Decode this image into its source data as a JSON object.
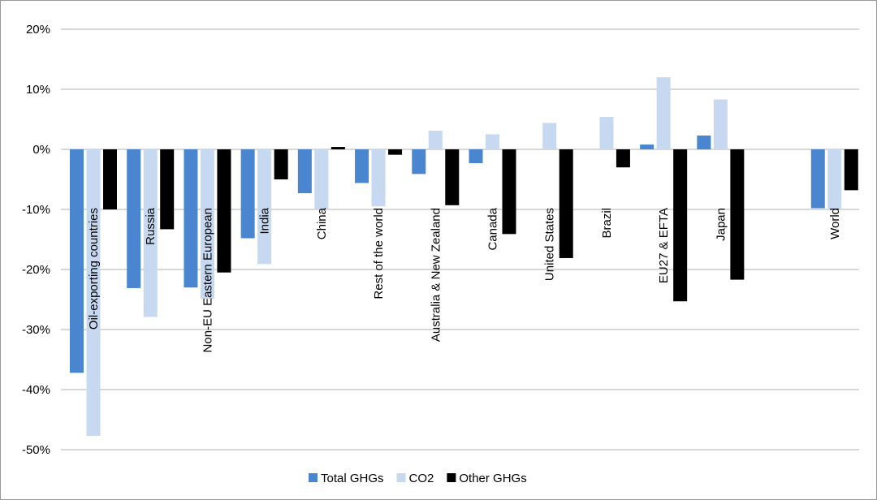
{
  "chart_data": {
    "type": "bar",
    "categories": [
      "Oil-exporting countries",
      "Russia",
      "Non-EU Eastern European countries",
      "India",
      "China",
      "Rest of the world",
      "Australia & New Zealand",
      "Canada",
      "United States",
      "Brazil",
      "EU27 & EFTA",
      "Japan",
      "",
      "World"
    ],
    "series": [
      {
        "name": "Total GHGs",
        "color": "#4a86d0",
        "values": [
          -37.2,
          -23.1,
          -23.0,
          -14.8,
          -7.3,
          -5.6,
          -4.1,
          -2.3,
          null,
          null,
          0.8,
          2.3,
          null,
          -9.8
        ]
      },
      {
        "name": "CO2",
        "color": "#c6d9f0",
        "values": [
          -47.7,
          -27.9,
          -24.9,
          -19.1,
          -10.0,
          -9.5,
          3.1,
          2.5,
          4.4,
          5.4,
          12.0,
          8.3,
          null,
          -10.0
        ]
      },
      {
        "name": "Other GHGs",
        "color": "#000000",
        "values": [
          -10.0,
          -13.3,
          -20.5,
          -5.0,
          0.4,
          -0.9,
          -9.3,
          -14.1,
          -18.1,
          -3.0,
          -25.3,
          -21.7,
          null,
          -6.8
        ]
      }
    ],
    "yticks": [
      "20%",
      "10%",
      "0%",
      "-10%",
      "-20%",
      "-30%",
      "-40%",
      "-50%"
    ],
    "ylim": [
      -50,
      20
    ],
    "grid": true,
    "legend_position": "bottom"
  }
}
